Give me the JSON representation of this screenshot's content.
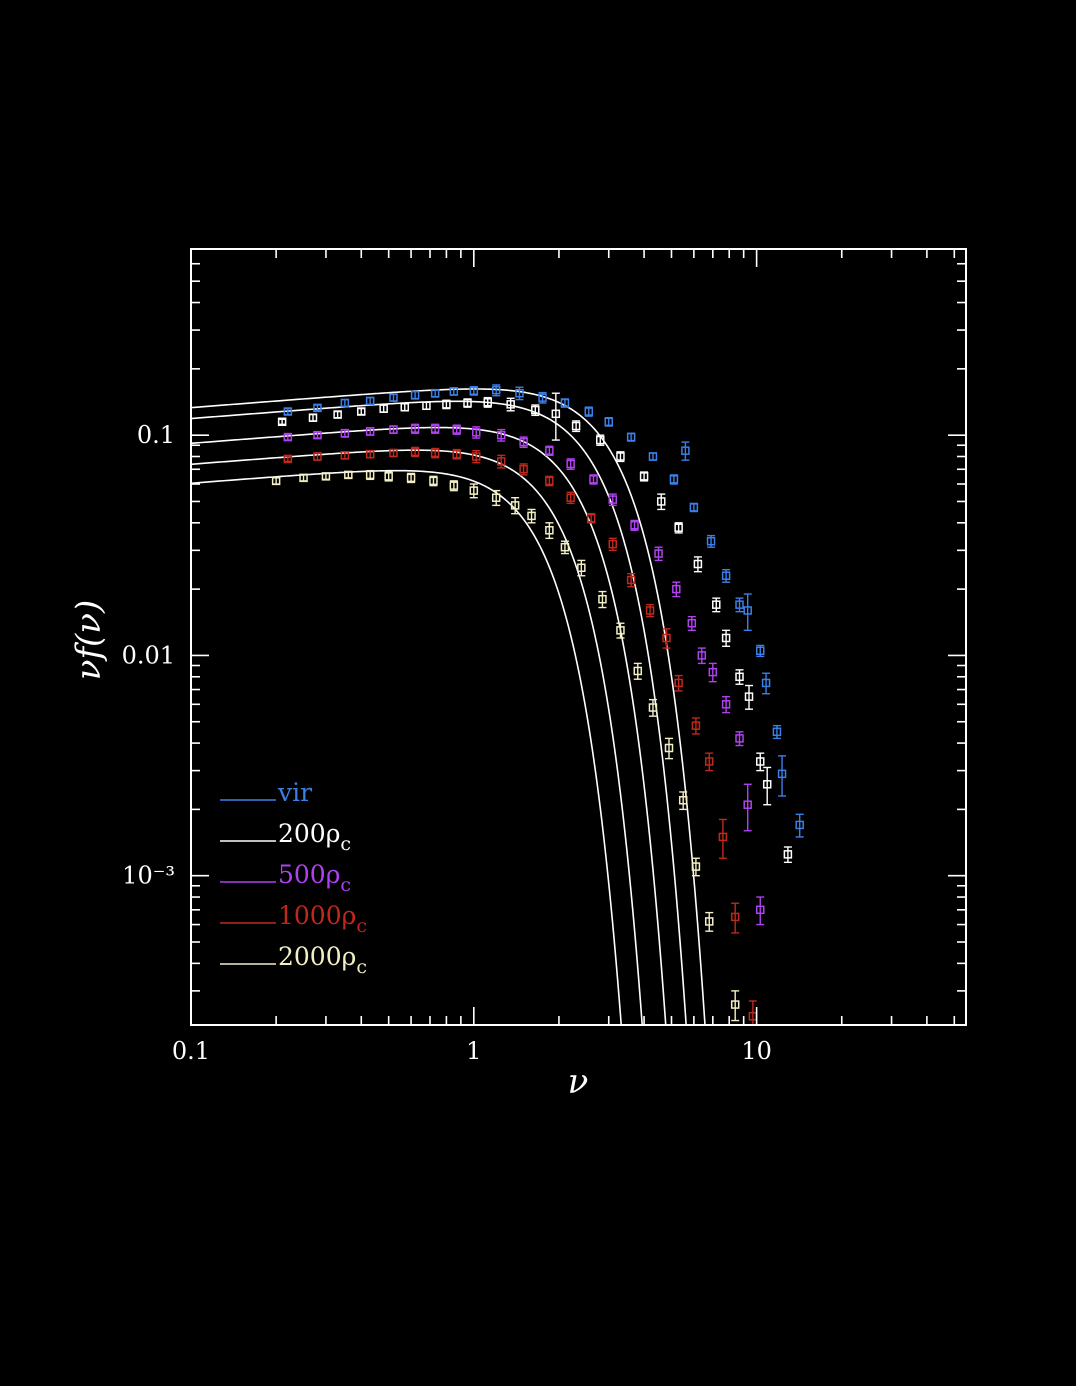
{
  "chart_data": {
    "type": "scatter",
    "title": "",
    "xlabel": "ν",
    "ylabel": "νf(ν)",
    "xscale": "log",
    "yscale": "log",
    "xlim": [
      0.1,
      55
    ],
    "ylim": [
      0.00021,
      0.7
    ],
    "grid": false,
    "legend_placement": "bottom-left",
    "x_ticks": [
      {
        "value": 0.1,
        "label": "0.1"
      },
      {
        "value": 1,
        "label": "1"
      },
      {
        "value": 10,
        "label": "10"
      }
    ],
    "y_ticks": [
      {
        "value": 0.1,
        "label": "0.1"
      },
      {
        "value": 0.01,
        "label": "0.01"
      },
      {
        "value": 0.001,
        "label": "10⁻³"
      }
    ],
    "series": [
      {
        "name": "vir",
        "label_main": "vir",
        "label_sub": "",
        "color": "#3b7fe8",
        "fit": {
          "peak": 0.162,
          "x0": 1.05,
          "alpha": 0.1,
          "cut": 3.3,
          "p": 2.8
        },
        "points": [
          [
            0.22,
            0.128,
            0.004
          ],
          [
            0.28,
            0.133,
            0.004
          ],
          [
            0.35,
            0.14,
            0.005
          ],
          [
            0.43,
            0.143,
            0.005
          ],
          [
            0.52,
            0.148,
            0.005
          ],
          [
            0.62,
            0.152,
            0.006
          ],
          [
            0.73,
            0.155,
            0.006
          ],
          [
            0.85,
            0.158,
            0.006
          ],
          [
            1.0,
            0.159,
            0.007
          ],
          [
            1.2,
            0.16,
            0.009
          ],
          [
            1.45,
            0.155,
            0.01
          ],
          [
            1.75,
            0.148,
            0.008
          ],
          [
            2.1,
            0.14,
            0.006
          ],
          [
            2.55,
            0.128,
            0.006
          ],
          [
            3.0,
            0.115,
            0.005
          ],
          [
            3.6,
            0.098,
            0.004
          ],
          [
            4.3,
            0.08,
            0.003
          ],
          [
            5.1,
            0.063,
            0.003
          ],
          [
            5.6,
            0.085,
            0.008
          ],
          [
            6.0,
            0.047,
            0.002
          ],
          [
            6.9,
            0.033,
            0.002
          ],
          [
            7.8,
            0.023,
            0.0015
          ],
          [
            8.7,
            0.017,
            0.0012
          ],
          [
            9.3,
            0.016,
            0.003
          ],
          [
            10.3,
            0.0105,
            0.0006
          ],
          [
            10.8,
            0.0075,
            0.0008
          ],
          [
            11.8,
            0.0045,
            0.0003
          ],
          [
            12.3,
            0.0029,
            0.0006
          ],
          [
            14.2,
            0.0017,
            0.0002
          ]
        ]
      },
      {
        "name": "200ρc",
        "label_main": "200ρ",
        "label_sub": "c",
        "color": "#ffffff",
        "fit": {
          "peak": 0.142,
          "x0": 1.0,
          "alpha": 0.1,
          "cut": 2.85,
          "p": 2.8
        },
        "points": [
          [
            0.21,
            0.115,
            0.003
          ],
          [
            0.27,
            0.12,
            0.004
          ],
          [
            0.33,
            0.124,
            0.004
          ],
          [
            0.4,
            0.128,
            0.004
          ],
          [
            0.48,
            0.132,
            0.005
          ],
          [
            0.57,
            0.134,
            0.005
          ],
          [
            0.68,
            0.136,
            0.005
          ],
          [
            0.8,
            0.138,
            0.006
          ],
          [
            0.95,
            0.14,
            0.006
          ],
          [
            1.12,
            0.141,
            0.007
          ],
          [
            1.35,
            0.138,
            0.009
          ],
          [
            1.65,
            0.13,
            0.007
          ],
          [
            1.95,
            0.125,
            0.03
          ],
          [
            2.3,
            0.11,
            0.006
          ],
          [
            2.8,
            0.095,
            0.005
          ],
          [
            3.3,
            0.08,
            0.004
          ],
          [
            4.0,
            0.065,
            0.003
          ],
          [
            4.6,
            0.05,
            0.004
          ],
          [
            5.3,
            0.038,
            0.002
          ],
          [
            6.2,
            0.026,
            0.002
          ],
          [
            7.2,
            0.017,
            0.0012
          ],
          [
            7.8,
            0.012,
            0.001
          ],
          [
            8.7,
            0.008,
            0.0006
          ],
          [
            9.4,
            0.0065,
            0.0008
          ],
          [
            10.3,
            0.0033,
            0.0003
          ],
          [
            10.9,
            0.0026,
            0.0005
          ],
          [
            12.9,
            0.00125,
            0.0001
          ]
        ]
      },
      {
        "name": "500ρc",
        "label_main": "500ρ",
        "label_sub": "c",
        "color": "#b041f0",
        "fit": {
          "peak": 0.108,
          "x0": 0.85,
          "alpha": 0.1,
          "cut": 2.45,
          "p": 2.8
        },
        "points": [
          [
            0.22,
            0.098,
            0.003
          ],
          [
            0.28,
            0.1,
            0.003
          ],
          [
            0.35,
            0.102,
            0.004
          ],
          [
            0.43,
            0.104,
            0.004
          ],
          [
            0.52,
            0.106,
            0.004
          ],
          [
            0.62,
            0.107,
            0.005
          ],
          [
            0.73,
            0.107,
            0.005
          ],
          [
            0.87,
            0.106,
            0.005
          ],
          [
            1.02,
            0.103,
            0.006
          ],
          [
            1.25,
            0.1,
            0.006
          ],
          [
            1.5,
            0.093,
            0.005
          ],
          [
            1.85,
            0.085,
            0.004
          ],
          [
            2.2,
            0.074,
            0.004
          ],
          [
            2.65,
            0.063,
            0.003
          ],
          [
            3.1,
            0.051,
            0.003
          ],
          [
            3.7,
            0.039,
            0.002
          ],
          [
            4.5,
            0.029,
            0.002
          ],
          [
            5.2,
            0.02,
            0.0015
          ],
          [
            5.9,
            0.014,
            0.001
          ],
          [
            6.4,
            0.01,
            0.0008
          ],
          [
            7.0,
            0.0084,
            0.0008
          ],
          [
            7.8,
            0.006,
            0.0005
          ],
          [
            8.7,
            0.0042,
            0.0003
          ],
          [
            9.3,
            0.0021,
            0.0005
          ],
          [
            10.3,
            0.0007,
            0.0001
          ]
        ]
      },
      {
        "name": "1000ρc",
        "label_main": "1000ρ",
        "label_sub": "c",
        "color": "#c0281c",
        "fit": {
          "peak": 0.085,
          "x0": 0.75,
          "alpha": 0.1,
          "cut": 2.05,
          "p": 2.8
        },
        "points": [
          [
            0.22,
            0.078,
            0.002
          ],
          [
            0.28,
            0.08,
            0.003
          ],
          [
            0.35,
            0.081,
            0.003
          ],
          [
            0.43,
            0.082,
            0.003
          ],
          [
            0.52,
            0.083,
            0.003
          ],
          [
            0.62,
            0.084,
            0.004
          ],
          [
            0.73,
            0.083,
            0.004
          ],
          [
            0.87,
            0.082,
            0.004
          ],
          [
            1.02,
            0.08,
            0.005
          ],
          [
            1.25,
            0.076,
            0.005
          ],
          [
            1.5,
            0.07,
            0.004
          ],
          [
            1.85,
            0.062,
            0.003
          ],
          [
            2.2,
            0.052,
            0.003
          ],
          [
            2.6,
            0.042,
            0.002
          ],
          [
            3.1,
            0.032,
            0.002
          ],
          [
            3.6,
            0.022,
            0.0015
          ],
          [
            4.2,
            0.016,
            0.001
          ],
          [
            4.8,
            0.012,
            0.0012
          ],
          [
            5.3,
            0.0075,
            0.0006
          ],
          [
            6.1,
            0.0048,
            0.0004
          ],
          [
            6.8,
            0.0033,
            0.0003
          ],
          [
            7.6,
            0.0015,
            0.0003
          ],
          [
            8.4,
            0.00065,
            0.0001
          ],
          [
            9.7,
            0.00023,
            4e-05
          ]
        ]
      },
      {
        "name": "2000ρc",
        "label_main": "2000ρ",
        "label_sub": "c",
        "color": "#f3efc4",
        "fit": {
          "peak": 0.069,
          "x0": 0.55,
          "alpha": 0.1,
          "cut": 1.75,
          "p": 2.8
        },
        "points": [
          [
            0.2,
            0.062,
            0.002
          ],
          [
            0.25,
            0.064,
            0.002
          ],
          [
            0.3,
            0.065,
            0.002
          ],
          [
            0.36,
            0.066,
            0.002
          ],
          [
            0.43,
            0.066,
            0.003
          ],
          [
            0.5,
            0.065,
            0.003
          ],
          [
            0.6,
            0.064,
            0.003
          ],
          [
            0.72,
            0.062,
            0.003
          ],
          [
            0.85,
            0.059,
            0.003
          ],
          [
            1.0,
            0.056,
            0.004
          ],
          [
            1.2,
            0.052,
            0.004
          ],
          [
            1.4,
            0.048,
            0.004
          ],
          [
            1.6,
            0.043,
            0.003
          ],
          [
            1.85,
            0.037,
            0.003
          ],
          [
            2.1,
            0.031,
            0.002
          ],
          [
            2.4,
            0.025,
            0.002
          ],
          [
            2.85,
            0.018,
            0.0015
          ],
          [
            3.3,
            0.013,
            0.001
          ],
          [
            3.8,
            0.0085,
            0.0007
          ],
          [
            4.3,
            0.0058,
            0.0005
          ],
          [
            4.9,
            0.0038,
            0.0004
          ],
          [
            5.5,
            0.0022,
            0.0002
          ],
          [
            6.1,
            0.0011,
            0.0001
          ],
          [
            6.8,
            0.00062,
            6e-05
          ],
          [
            8.4,
            0.00026,
            4e-05
          ]
        ]
      }
    ]
  }
}
